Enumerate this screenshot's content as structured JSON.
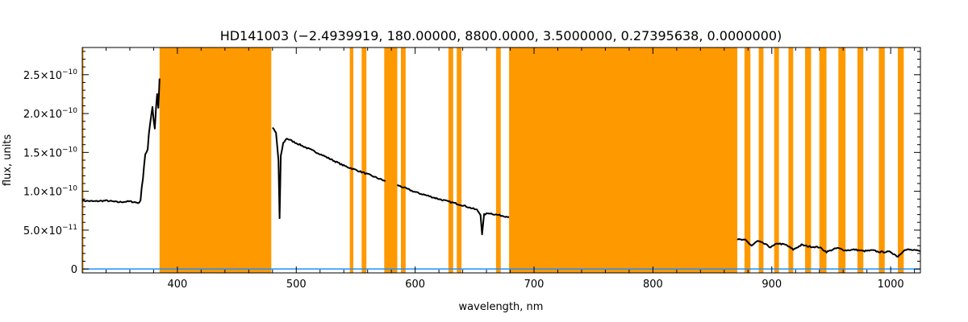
{
  "chart_data": {
    "type": "line",
    "title": "HD141003   (−2.4939919, 180.00000, 8800.0000, 3.5000000, 0.27395638, 0.0000000)",
    "xlabel": "wavelength, nm",
    "ylabel": "flux, units",
    "xlim": [
      320,
      1025
    ],
    "ylim": [
      -5e-12,
      2.85e-10
    ],
    "xticks": [
      400,
      500,
      600,
      700,
      800,
      900,
      1000
    ],
    "xtick_labels": [
      "400",
      "500",
      "600",
      "700",
      "800",
      "900",
      "1000"
    ],
    "yticks": [
      0,
      5e-11,
      1e-10,
      1.5e-10,
      2e-10,
      2.5e-10
    ],
    "ytick_labels": [
      {
        "mant": "0",
        "exp": ""
      },
      {
        "mant": "5.0×10",
        "exp": "−11"
      },
      {
        "mant": "1.0×10",
        "exp": "−10"
      },
      {
        "mant": "1.5×10",
        "exp": "−10"
      },
      {
        "mant": "2.0×10",
        "exp": "−10"
      },
      {
        "mant": "2.5×10",
        "exp": "−10"
      }
    ],
    "grid": false,
    "colors": {
      "mask": "#ff9900",
      "spectrum": "#000000",
      "baseline": "#1e90ff",
      "axes": "#000000"
    },
    "masked_regions": [
      [
        320,
        321
      ],
      [
        385,
        479
      ],
      [
        545,
        548
      ],
      [
        555,
        559
      ],
      [
        574,
        585
      ],
      [
        588,
        592
      ],
      [
        628,
        632
      ],
      [
        635,
        639
      ],
      [
        668,
        672
      ],
      [
        679,
        871
      ],
      [
        877,
        882
      ],
      [
        889,
        893
      ],
      [
        902,
        906
      ],
      [
        914,
        918
      ],
      [
        928,
        933
      ],
      [
        940,
        946
      ],
      [
        956,
        962
      ],
      [
        972,
        977
      ],
      [
        990,
        995
      ],
      [
        1006,
        1011
      ]
    ],
    "series": [
      {
        "segments": [
          {
            "x": [
              320,
              330,
              340,
              350,
              360,
              368,
              372,
              375,
              377,
              379,
              381,
              383,
              384,
              385
            ],
            "y": [
              8.8e-11,
              8.7e-11,
              8.8e-11,
              8.6e-11,
              8.7e-11,
              8.5e-11,
              1.3e-10,
              1.6e-10,
              1.9e-10,
              2.1e-10,
              1.8e-10,
              2.3e-10,
              2e-10,
              2.45e-10
            ]
          },
          {
            "x": [
              480,
              483,
              485,
              486,
              487,
              489,
              492,
              500,
              520,
              540,
              560,
              575
            ],
            "y": [
              1.82e-10,
              1.75e-10,
              1.4e-10,
              6.5e-11,
              1.45e-10,
              1.62e-10,
              1.68e-10,
              1.62e-10,
              1.48e-10,
              1.33e-10,
              1.22e-10,
              1.13e-10
            ]
          },
          {
            "x": [
              585,
              600,
              620,
              640,
              652,
              655,
              656.3,
              658,
              662,
              668,
              679
            ],
            "y": [
              1.08e-10,
              9.9e-11,
              9e-11,
              8.2e-11,
              7.6e-11,
              7e-11,
              4.5e-11,
              7e-11,
              7.2e-11,
              7e-11,
              6.7e-11
            ]
          },
          {
            "x": [
              871,
              878,
              883,
              888,
              893,
              899,
              905,
              912,
              918,
              925,
              931,
              940,
              946,
              955,
              962,
              970,
              977,
              985,
              990,
              1000,
              1006,
              1011,
              1015,
              1025
            ],
            "y": [
              3.8e-11,
              3.7e-11,
              3e-11,
              3.6e-11,
              3.3e-11,
              2.8e-11,
              3.3e-11,
              3.1e-11,
              2.5e-11,
              3.1e-11,
              2.9e-11,
              2.8e-11,
              2.2e-11,
              2.7e-11,
              2.4e-11,
              2.5e-11,
              2.3e-11,
              2.4e-11,
              2.2e-11,
              2.2e-11,
              1.6e-11,
              2.4e-11,
              2.5e-11,
              2.3e-11
            ]
          }
        ]
      },
      {
        "x": [
          320,
          1025
        ],
        "y": [
          0,
          0
        ]
      }
    ]
  }
}
